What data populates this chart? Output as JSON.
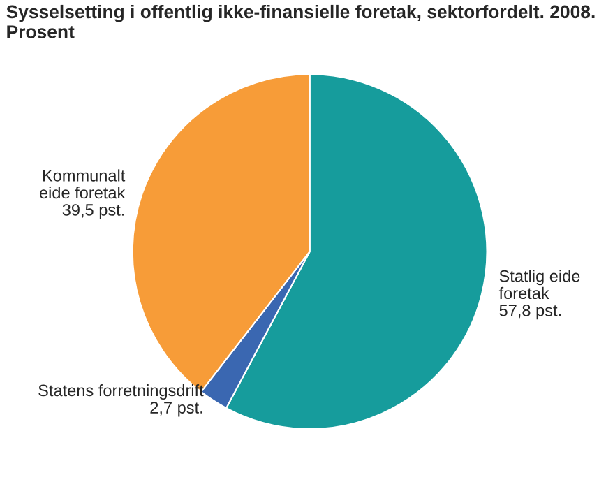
{
  "chart_data": {
    "type": "pie",
    "title": "Sysselsetting i offentlig ikke-finansielle foretak, sektorfordelt. 2008.\nProsent",
    "categories": [
      "Statlig eide\nforetak",
      "Statens forretningsdrift",
      "Kommunalt\neide foretak"
    ],
    "values": [
      57.8,
      2.7,
      39.5
    ],
    "value_labels": [
      "57,8 pst.",
      "2,7 pst.",
      "39,5 pst."
    ],
    "colors": [
      "#169c9c",
      "#3a67b1",
      "#f79c38"
    ]
  }
}
